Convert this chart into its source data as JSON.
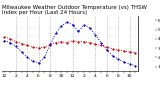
{
  "title": "Milwaukee Weather Outdoor Temperature (vs) THSW Index per Hour (Last 24 Hours)",
  "hours": [
    0,
    1,
    2,
    3,
    4,
    5,
    6,
    7,
    8,
    9,
    10,
    11,
    12,
    13,
    14,
    15,
    16,
    17,
    18,
    19,
    20,
    21,
    22,
    23
  ],
  "red_values": [
    42,
    40,
    37,
    35,
    33,
    31,
    30,
    31,
    34,
    36,
    37,
    36,
    38,
    37,
    37,
    36,
    34,
    33,
    31,
    29,
    28,
    27,
    26,
    25
  ],
  "blue_values": [
    38,
    36,
    32,
    26,
    20,
    16,
    14,
    20,
    33,
    46,
    54,
    58,
    55,
    48,
    55,
    52,
    44,
    36,
    28,
    22,
    18,
    15,
    13,
    11
  ],
  "ylim": [
    5,
    65
  ],
  "yticks": [
    10,
    20,
    30,
    40,
    50,
    60
  ],
  "ytick_labels": [
    "10",
    "20",
    "30",
    "40",
    "50",
    "60"
  ],
  "bg_color": "#ffffff",
  "plot_bg": "#ffffff",
  "red_color": "#cc0000",
  "blue_color": "#0000cc",
  "grid_color": "#999999",
  "title_fontsize": 4.0,
  "tick_fontsize": 3.2,
  "line_width": 0.7,
  "marker_size": 1.2,
  "grid_hours": [
    2,
    4,
    6,
    8,
    12,
    16,
    18,
    20,
    22
  ]
}
